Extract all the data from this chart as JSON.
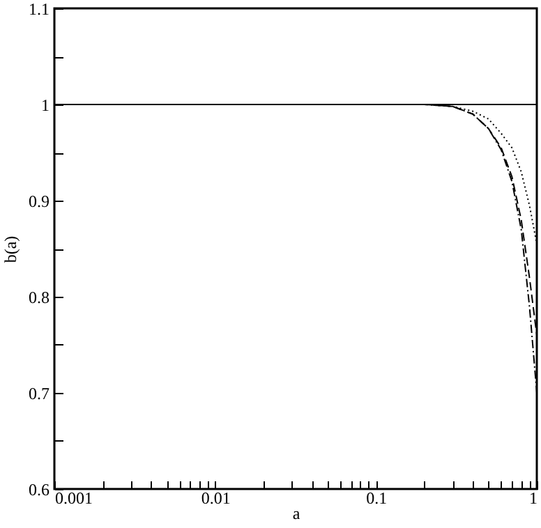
{
  "chart_data": {
    "type": "line",
    "xlabel": "a",
    "ylabel": "b(a)",
    "log": "x",
    "xlim": [
      0.001,
      1
    ],
    "xticks": [
      {
        "value": 0.001,
        "label": "0.001"
      },
      {
        "value": 0.002,
        "label": null
      },
      {
        "value": 0.003,
        "label": null
      },
      {
        "value": 0.004,
        "label": null
      },
      {
        "value": 0.005,
        "label": null
      },
      {
        "value": 0.006,
        "label": null
      },
      {
        "value": 0.007,
        "label": null
      },
      {
        "value": 0.008,
        "label": null
      },
      {
        "value": 0.009,
        "label": null
      },
      {
        "value": 0.01,
        "label": "0.01"
      },
      {
        "value": 0.02,
        "label": null
      },
      {
        "value": 0.03,
        "label": null
      },
      {
        "value": 0.04,
        "label": null
      },
      {
        "value": 0.05,
        "label": null
      },
      {
        "value": 0.06,
        "label": null
      },
      {
        "value": 0.07,
        "label": null
      },
      {
        "value": 0.08,
        "label": null
      },
      {
        "value": 0.09,
        "label": null
      },
      {
        "value": 0.1,
        "label": "0.1"
      },
      {
        "value": 0.2,
        "label": null
      },
      {
        "value": 0.3,
        "label": null
      },
      {
        "value": 0.4,
        "label": null
      },
      {
        "value": 0.5,
        "label": null
      },
      {
        "value": 0.6,
        "label": null
      },
      {
        "value": 0.7,
        "label": null
      },
      {
        "value": 0.8,
        "label": null
      },
      {
        "value": 0.9,
        "label": null
      },
      {
        "value": 1,
        "label": "1"
      }
    ],
    "ylim": [
      0.6,
      1.1
    ],
    "yticks": [
      0.6,
      {
        "value": 0.65,
        "label": null
      },
      0.7,
      {
        "value": 0.75,
        "label": null
      },
      0.8,
      {
        "value": 0.85,
        "label": null
      },
      0.9,
      {
        "value": 0.95,
        "label": null
      },
      1,
      {
        "value": 1.05,
        "label": null
      },
      1.1
    ],
    "marker": "none",
    "x": [
      0.001,
      0.01,
      0.1,
      0.2,
      0.3,
      0.4,
      0.5,
      0.6,
      0.7,
      0.8,
      0.9,
      1
    ],
    "series": [
      {
        "color": "#000000",
        "line_style": "solid",
        "values": [
          1,
          1,
          1,
          1,
          1,
          1,
          1,
          1,
          1,
          1,
          1,
          1
        ]
      },
      {
        "color": "#000000",
        "line_style": "dotted",
        "values": [
          1,
          1,
          1,
          1,
          0.998,
          0.993,
          0.985,
          0.97,
          0.955,
          0.93,
          0.895,
          0.855
        ]
      },
      {
        "color": "#000000",
        "line_style": "dashed",
        "values": [
          1,
          1,
          1,
          1,
          0.998,
          0.99,
          0.975,
          0.955,
          0.925,
          0.88,
          0.82,
          0.76
        ]
      },
      {
        "color": "#000000",
        "line_style": "dashdot",
        "values": [
          1,
          1,
          1,
          1,
          0.998,
          0.99,
          0.975,
          0.953,
          0.92,
          0.87,
          0.79,
          0.7
        ]
      }
    ]
  }
}
